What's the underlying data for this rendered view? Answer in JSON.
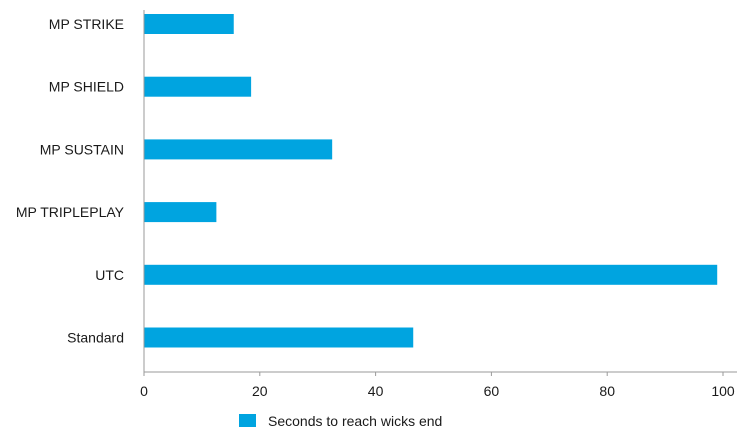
{
  "chart_data": {
    "type": "bar",
    "orientation": "horizontal",
    "categories": [
      "MP STRIKE",
      "MP SHIELD",
      "MP SUSTAIN",
      "MP TRIPLEPLAY",
      "UTC",
      "Standard"
    ],
    "series": [
      {
        "name": "Seconds to reach wicks end",
        "values": [
          15.5,
          18.5,
          32.5,
          12.5,
          99,
          46.5
        ],
        "color": "#00a4e0"
      }
    ],
    "xlim": [
      0,
      100
    ],
    "xticks": [
      0,
      20,
      40,
      60,
      80,
      100
    ],
    "grid": false,
    "legend_position": "bottom"
  }
}
